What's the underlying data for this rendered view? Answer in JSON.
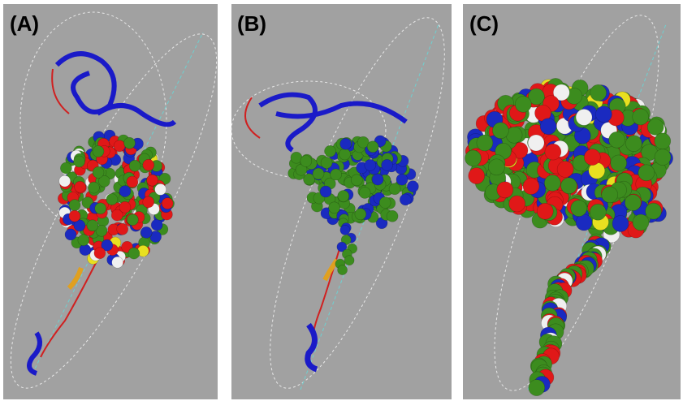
{
  "panels": [
    {
      "label": "(A)"
    },
    {
      "label": "(B)"
    },
    {
      "label": "(C)"
    }
  ]
}
